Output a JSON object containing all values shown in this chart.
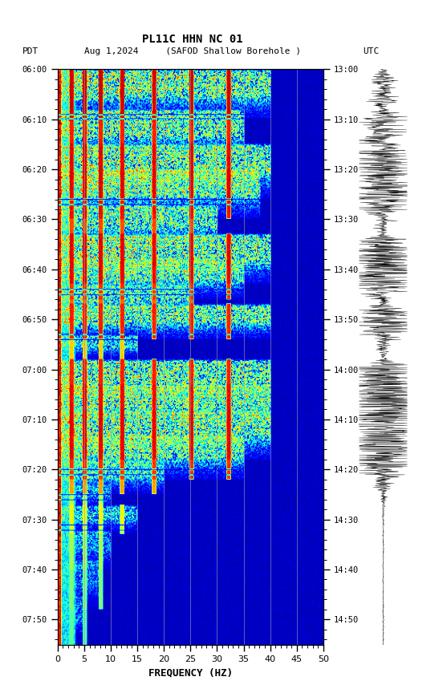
{
  "title_line1": "PL11C HHN NC 01",
  "title_line2_left": "PDT",
  "title_line2_center": "Aug 1,2024     (SAFOD Shallow Borehole )",
  "title_line2_right": "UTC",
  "xlabel": "FREQUENCY (HZ)",
  "freq_min": 0,
  "freq_max": 50,
  "ytick_vals": [
    0,
    10,
    20,
    30,
    40,
    50,
    60,
    70,
    80,
    90,
    100,
    110
  ],
  "yticks_left": [
    "06:00",
    "06:10",
    "06:20",
    "06:30",
    "06:40",
    "06:50",
    "07:00",
    "07:10",
    "07:20",
    "07:30",
    "07:40",
    "07:50"
  ],
  "yticks_right": [
    "13:00",
    "13:10",
    "13:20",
    "13:30",
    "13:40",
    "13:50",
    "14:00",
    "14:10",
    "14:20",
    "14:30",
    "14:40",
    "14:50"
  ],
  "xticks": [
    0,
    5,
    10,
    15,
    20,
    25,
    30,
    35,
    40,
    45,
    50
  ],
  "grid_color": "#9999bb",
  "background_color": "#000066",
  "fig_width": 5.52,
  "fig_height": 8.64,
  "dpi": 100,
  "random_seed": 42,
  "colormap": "jet",
  "time_total": 115
}
